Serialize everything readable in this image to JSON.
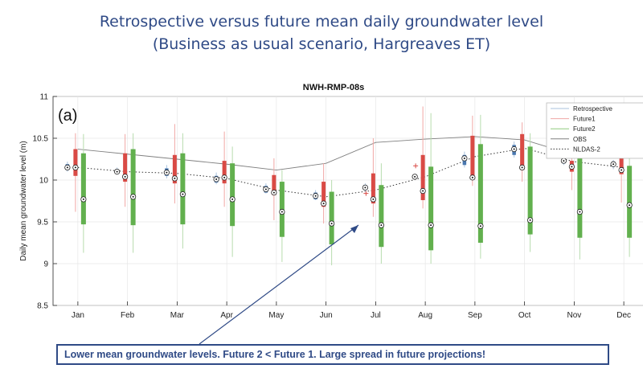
{
  "slide": {
    "title_line1": "Retrospective versus future mean daily groundwater level",
    "title_line2": "(Business as usual scenario, Hargreaves ET)",
    "callout": "Lower mean groundwater levels. Future 2 <  Future 1. Large spread in future projections!"
  },
  "chart_data": {
    "type": "box",
    "title": "NWH-RMP-08s",
    "panel_label": "(a)",
    "ylabel": "Daily mean groundwater level (m)",
    "xlabel": "",
    "ylim": [
      8.5,
      11
    ],
    "yticks": [
      8.5,
      9,
      9.5,
      10,
      10.5,
      11
    ],
    "grid": true,
    "legend_position": "top-right",
    "categories": [
      "Jan",
      "Feb",
      "Mar",
      "Apr",
      "May",
      "Jun",
      "Jul",
      "Aug",
      "Sep",
      "Oct",
      "Nov",
      "Dec"
    ],
    "series": [
      {
        "name": "Retrospective",
        "color": "#4a78b0",
        "boxes": [
          {
            "min": 10.1,
            "q1": 10.12,
            "median": 10.15,
            "q3": 10.19,
            "max": 10.22
          },
          {
            "min": 10.07,
            "q1": 10.08,
            "median": 10.1,
            "q3": 10.13,
            "max": 10.15
          },
          {
            "min": 10.02,
            "q1": 10.05,
            "median": 10.09,
            "q3": 10.14,
            "max": 10.18
          },
          {
            "min": 9.95,
            "q1": 9.97,
            "median": 10.01,
            "q3": 10.05,
            "max": 10.09
          },
          {
            "min": 9.84,
            "q1": 9.85,
            "median": 9.89,
            "q3": 9.93,
            "max": 9.96
          },
          {
            "min": 9.76,
            "q1": 9.77,
            "median": 9.81,
            "q3": 9.85,
            "max": 9.88
          },
          {
            "min": 9.86,
            "q1": 9.88,
            "median": 9.91,
            "q3": 9.94,
            "max": 9.96
          },
          {
            "min": 10.02,
            "q1": 10.03,
            "median": 10.04,
            "q3": 10.06,
            "max": 10.07
          },
          {
            "min": 10.15,
            "q1": 10.18,
            "median": 10.26,
            "q3": 10.3,
            "max": 10.34
          },
          {
            "min": 10.27,
            "q1": 10.3,
            "median": 10.37,
            "q3": 10.42,
            "max": 10.46
          },
          {
            "min": 10.18,
            "q1": 10.2,
            "median": 10.23,
            "q3": 10.26,
            "max": 10.28
          },
          {
            "min": 10.13,
            "q1": 10.16,
            "median": 10.19,
            "q3": 10.22,
            "max": 10.24
          }
        ]
      },
      {
        "name": "Future1",
        "color": "#d94a45",
        "boxes": [
          {
            "min": 9.62,
            "q1": 10.05,
            "median": 10.15,
            "q3": 10.37,
            "max": 10.56
          },
          {
            "min": 9.68,
            "q1": 9.98,
            "median": 10.04,
            "q3": 10.32,
            "max": 10.55
          },
          {
            "min": 9.72,
            "q1": 9.96,
            "median": 10.02,
            "q3": 10.3,
            "max": 10.67
          },
          {
            "min": 9.68,
            "q1": 9.96,
            "median": 10.03,
            "q3": 10.23,
            "max": 10.58
          },
          {
            "min": 9.52,
            "q1": 9.82,
            "median": 9.85,
            "q3": 10.06,
            "max": 10.26
          },
          {
            "min": 9.48,
            "q1": 9.68,
            "median": 9.72,
            "q3": 9.98,
            "max": 10.2
          },
          {
            "min": 9.56,
            "q1": 9.72,
            "median": 9.77,
            "q3": 10.08,
            "max": 10.5
          },
          {
            "min": 9.66,
            "q1": 9.76,
            "median": 9.87,
            "q3": 10.3,
            "max": 10.88
          },
          {
            "min": 9.93,
            "q1": 10.01,
            "median": 10.03,
            "q3": 10.53,
            "max": 10.77
          },
          {
            "min": 9.98,
            "q1": 10.12,
            "median": 10.15,
            "q3": 10.55,
            "max": 10.69
          },
          {
            "min": 9.88,
            "q1": 10.1,
            "median": 10.16,
            "q3": 10.23,
            "max": 10.44
          },
          {
            "min": 9.73,
            "q1": 10.07,
            "median": 10.12,
            "q3": 10.35,
            "max": 10.5
          }
        ]
      },
      {
        "name": "Future2",
        "color": "#62b04e",
        "boxes": [
          {
            "min": 9.13,
            "q1": 9.47,
            "median": 9.77,
            "q3": 10.32,
            "max": 10.55
          },
          {
            "min": 9.13,
            "q1": 9.46,
            "median": 9.8,
            "q3": 10.37,
            "max": 10.56
          },
          {
            "min": 9.18,
            "q1": 9.47,
            "median": 9.83,
            "q3": 10.32,
            "max": 10.56
          },
          {
            "min": 9.08,
            "q1": 9.45,
            "median": 9.77,
            "q3": 10.2,
            "max": 10.4
          },
          {
            "min": 9.02,
            "q1": 9.32,
            "median": 9.62,
            "q3": 9.98,
            "max": 10.12
          },
          {
            "min": 8.98,
            "q1": 9.23,
            "median": 9.48,
            "q3": 9.86,
            "max": 10.0
          },
          {
            "min": 9.0,
            "q1": 9.2,
            "median": 9.46,
            "q3": 9.94,
            "max": 10.2
          },
          {
            "min": 9.0,
            "q1": 9.16,
            "median": 9.46,
            "q3": 10.16,
            "max": 10.8
          },
          {
            "min": 9.06,
            "q1": 9.25,
            "median": 9.45,
            "q3": 10.43,
            "max": 10.78
          },
          {
            "min": 9.14,
            "q1": 9.35,
            "median": 9.52,
            "q3": 10.4,
            "max": 10.56
          },
          {
            "min": 9.05,
            "q1": 9.31,
            "median": 9.62,
            "q3": 10.28,
            "max": 10.46
          },
          {
            "min": 9.08,
            "q1": 9.31,
            "median": 9.7,
            "q3": 10.17,
            "max": 10.36
          }
        ]
      },
      {
        "name": "OBS",
        "color": "#808080",
        "values": [
          10.37,
          10.31,
          10.25,
          10.19,
          10.12,
          10.2,
          10.45,
          10.49,
          10.52,
          10.48,
          10.3,
          10.28
        ]
      },
      {
        "name": "NLDAS-2",
        "color": "#808080",
        "values": [
          10.15,
          10.1,
          10.08,
          10.02,
          9.88,
          9.8,
          9.88,
          10.04,
          10.28,
          10.38,
          10.22,
          10.15
        ]
      }
    ],
    "outliers": [
      {
        "month": "Jul",
        "series": "Future1",
        "value": 9.84
      },
      {
        "month": "Aug",
        "series": "Future1",
        "value": 10.17
      }
    ]
  }
}
